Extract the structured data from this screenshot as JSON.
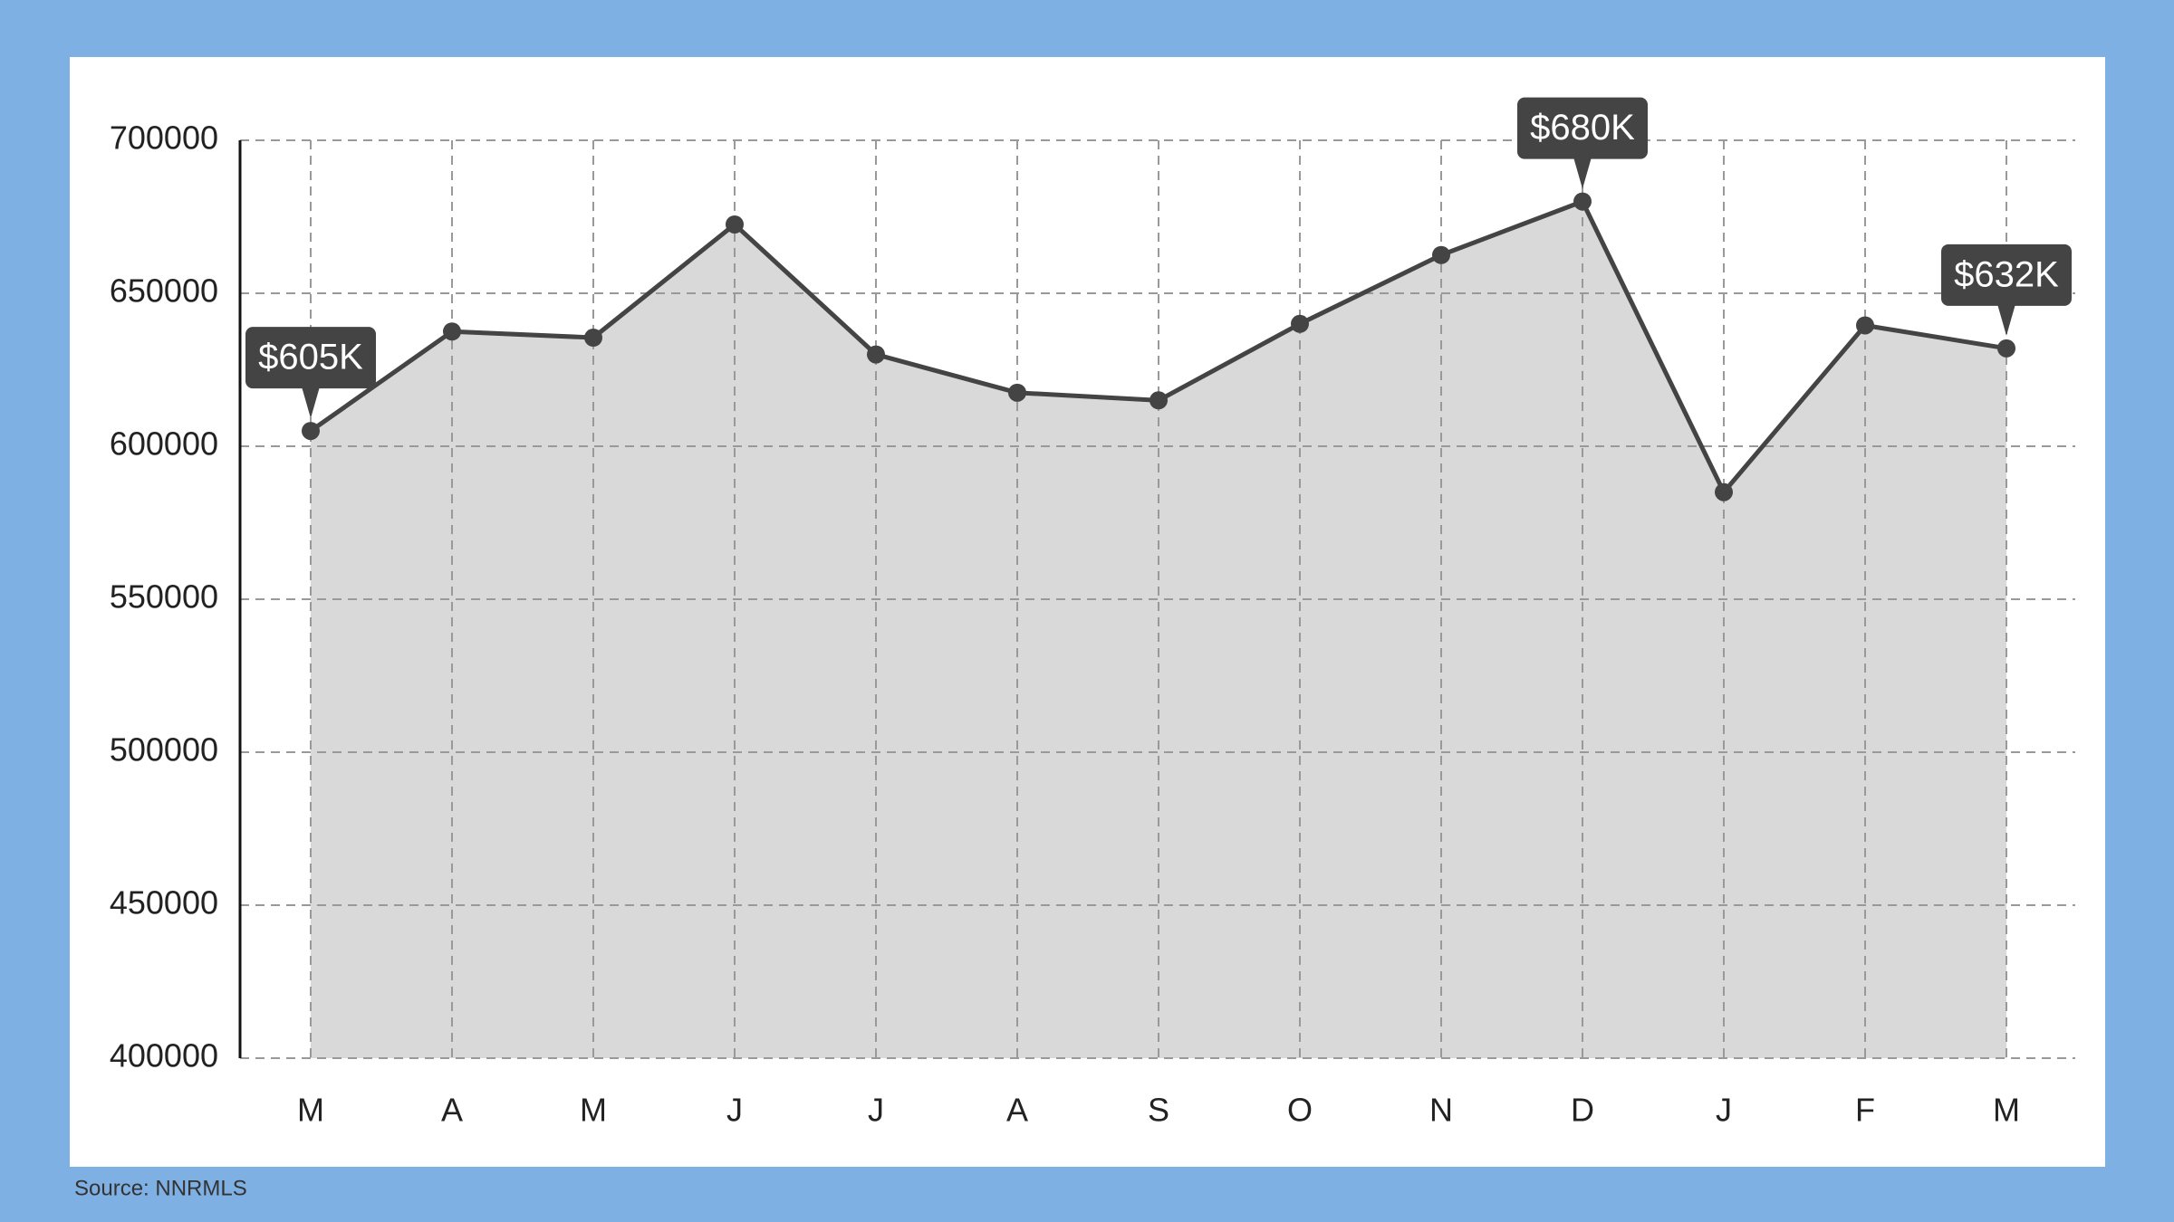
{
  "chart_data": {
    "type": "area",
    "categories": [
      "M",
      "A",
      "M",
      "J",
      "J",
      "A",
      "S",
      "O",
      "N",
      "D",
      "J",
      "F",
      "M"
    ],
    "values": [
      605000,
      637500,
      635500,
      672500,
      630000,
      617500,
      615000,
      640000,
      662500,
      680000,
      585000,
      639500,
      632000
    ],
    "value_labels": [
      "$605K",
      null,
      null,
      null,
      null,
      null,
      null,
      null,
      null,
      "$680K",
      null,
      null,
      "$632K"
    ],
    "color": "#444444",
    "fill": "#d9d9d9",
    "ylim": [
      400000,
      700000
    ],
    "yticks": [
      400000,
      450000,
      500000,
      550000,
      600000,
      650000,
      700000
    ],
    "grid": true,
    "source": "Source: NNRMLS"
  }
}
